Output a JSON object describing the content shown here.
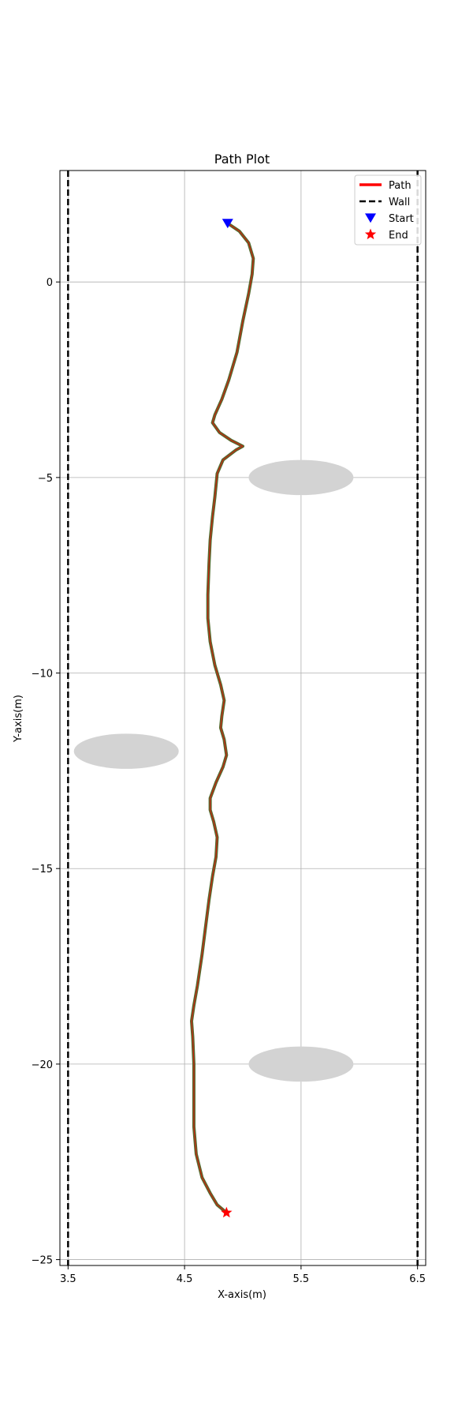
{
  "chart_data": {
    "type": "line",
    "title": "Path Plot",
    "xlabel": "X-axis(m)",
    "ylabel": "Y-axis(m)",
    "xlim": [
      3.43,
      6.57
    ],
    "ylim": [
      -25.15,
      2.85
    ],
    "xticks": [
      3.5,
      4.5,
      5.5,
      6.5
    ],
    "xtick_labels": [
      "3.5",
      "4.5",
      "5.5",
      "6.5"
    ],
    "yticks": [
      0,
      -5,
      -10,
      -15,
      -20,
      -25
    ],
    "ytick_labels": [
      "0",
      "−5",
      "−10",
      "−15",
      "−20",
      "−25"
    ],
    "grid": true,
    "legend_position": "top-right",
    "legend": [
      {
        "label": "Path",
        "kind": "line",
        "color": "#ff0000"
      },
      {
        "label": "Wall",
        "kind": "dashed",
        "color": "#000000"
      },
      {
        "label": "Start",
        "kind": "triangle",
        "color": "#0000ff"
      },
      {
        "label": "End",
        "kind": "star",
        "color": "#ff0000"
      }
    ],
    "walls": [
      {
        "x": 3.5
      },
      {
        "x": 6.5
      }
    ],
    "obstacles": [
      {
        "cx": 5.5,
        "cy": -5.0,
        "rx": 0.45,
        "ry": 0.45,
        "color": "#d3d3d3"
      },
      {
        "cx": 4.0,
        "cy": -12.0,
        "rx": 0.45,
        "ry": 0.45,
        "color": "#d3d3d3"
      },
      {
        "cx": 5.5,
        "cy": -20.0,
        "rx": 0.45,
        "ry": 0.45,
        "color": "#d3d3d3"
      }
    ],
    "start": {
      "x": 4.87,
      "y": 1.5,
      "color": "#0000ff"
    },
    "end": {
      "x": 4.86,
      "y": -23.8,
      "color": "#ff0000"
    },
    "path_color": "#ff0000",
    "path_outline_color": "#556b2f",
    "path": [
      [
        4.87,
        1.5
      ],
      [
        4.97,
        1.3
      ],
      [
        5.05,
        1.0
      ],
      [
        5.09,
        0.6
      ],
      [
        5.08,
        0.2
      ],
      [
        5.05,
        -0.3
      ],
      [
        5.0,
        -1.0
      ],
      [
        4.95,
        -1.8
      ],
      [
        4.88,
        -2.5
      ],
      [
        4.82,
        -3.0
      ],
      [
        4.76,
        -3.4
      ],
      [
        4.74,
        -3.6
      ],
      [
        4.8,
        -3.85
      ],
      [
        4.9,
        -4.05
      ],
      [
        5.0,
        -4.2
      ],
      [
        4.94,
        -4.3
      ],
      [
        4.83,
        -4.55
      ],
      [
        4.78,
        -4.9
      ],
      [
        4.76,
        -5.5
      ],
      [
        4.74,
        -6.0
      ],
      [
        4.72,
        -6.6
      ],
      [
        4.71,
        -7.2
      ],
      [
        4.7,
        -8.0
      ],
      [
        4.7,
        -8.6
      ],
      [
        4.72,
        -9.2
      ],
      [
        4.76,
        -9.8
      ],
      [
        4.81,
        -10.3
      ],
      [
        4.84,
        -10.7
      ],
      [
        4.82,
        -11.1
      ],
      [
        4.81,
        -11.4
      ],
      [
        4.84,
        -11.7
      ],
      [
        4.86,
        -12.1
      ],
      [
        4.83,
        -12.4
      ],
      [
        4.77,
        -12.8
      ],
      [
        4.72,
        -13.2
      ],
      [
        4.72,
        -13.5
      ],
      [
        4.75,
        -13.8
      ],
      [
        4.78,
        -14.2
      ],
      [
        4.77,
        -14.7
      ],
      [
        4.74,
        -15.2
      ],
      [
        4.71,
        -15.8
      ],
      [
        4.68,
        -16.5
      ],
      [
        4.65,
        -17.2
      ],
      [
        4.61,
        -18.0
      ],
      [
        4.58,
        -18.5
      ],
      [
        4.56,
        -18.9
      ],
      [
        4.57,
        -19.3
      ],
      [
        4.58,
        -20.0
      ],
      [
        4.58,
        -20.8
      ],
      [
        4.58,
        -21.6
      ],
      [
        4.6,
        -22.3
      ],
      [
        4.65,
        -22.9
      ],
      [
        4.72,
        -23.3
      ],
      [
        4.78,
        -23.6
      ],
      [
        4.86,
        -23.8
      ]
    ]
  }
}
